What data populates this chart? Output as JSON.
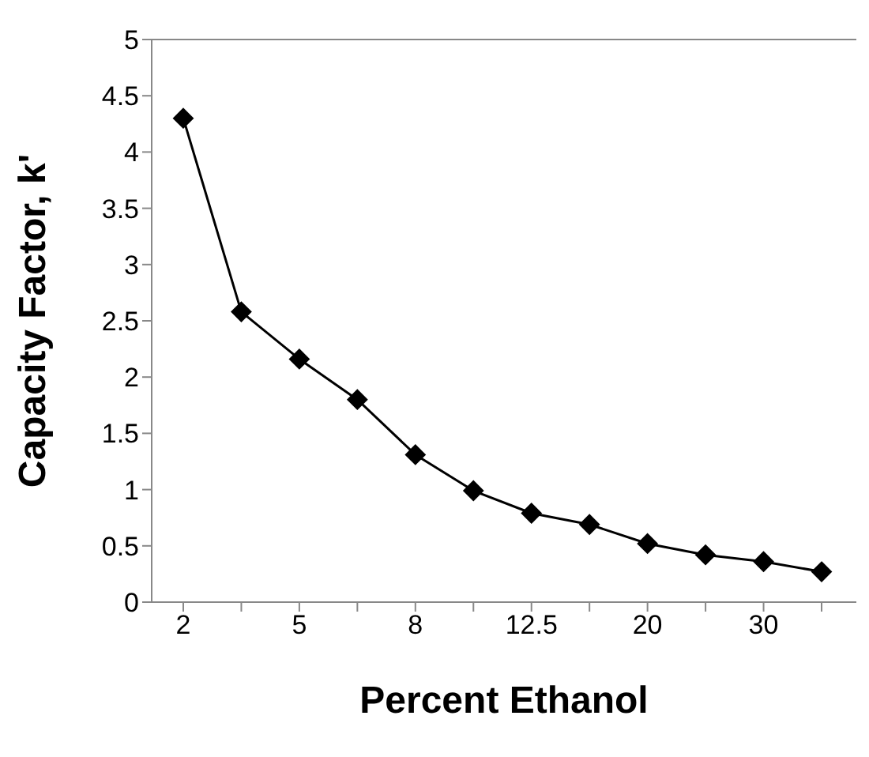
{
  "chart_data": {
    "type": "line",
    "xlabel": "Percent Ethanol",
    "ylabel": "Capacity Factor, k'",
    "categories": [
      "2",
      null,
      "5",
      null,
      "8",
      null,
      "12.5",
      null,
      "20",
      null,
      "30",
      null
    ],
    "series": [
      {
        "color": "#000000",
        "values": [
          4.3,
          2.58,
          2.16,
          1.8,
          1.31,
          0.99,
          0.79,
          0.69,
          0.52,
          0.42,
          0.36,
          0.27
        ]
      }
    ],
    "ylim": [
      0,
      5
    ],
    "yticks": [
      0,
      0.5,
      1,
      1.5,
      2,
      2.5,
      3,
      3.5,
      4,
      4.5,
      5
    ],
    "grid": false,
    "legend": false,
    "marker": "diamond",
    "line_style": "solid"
  }
}
